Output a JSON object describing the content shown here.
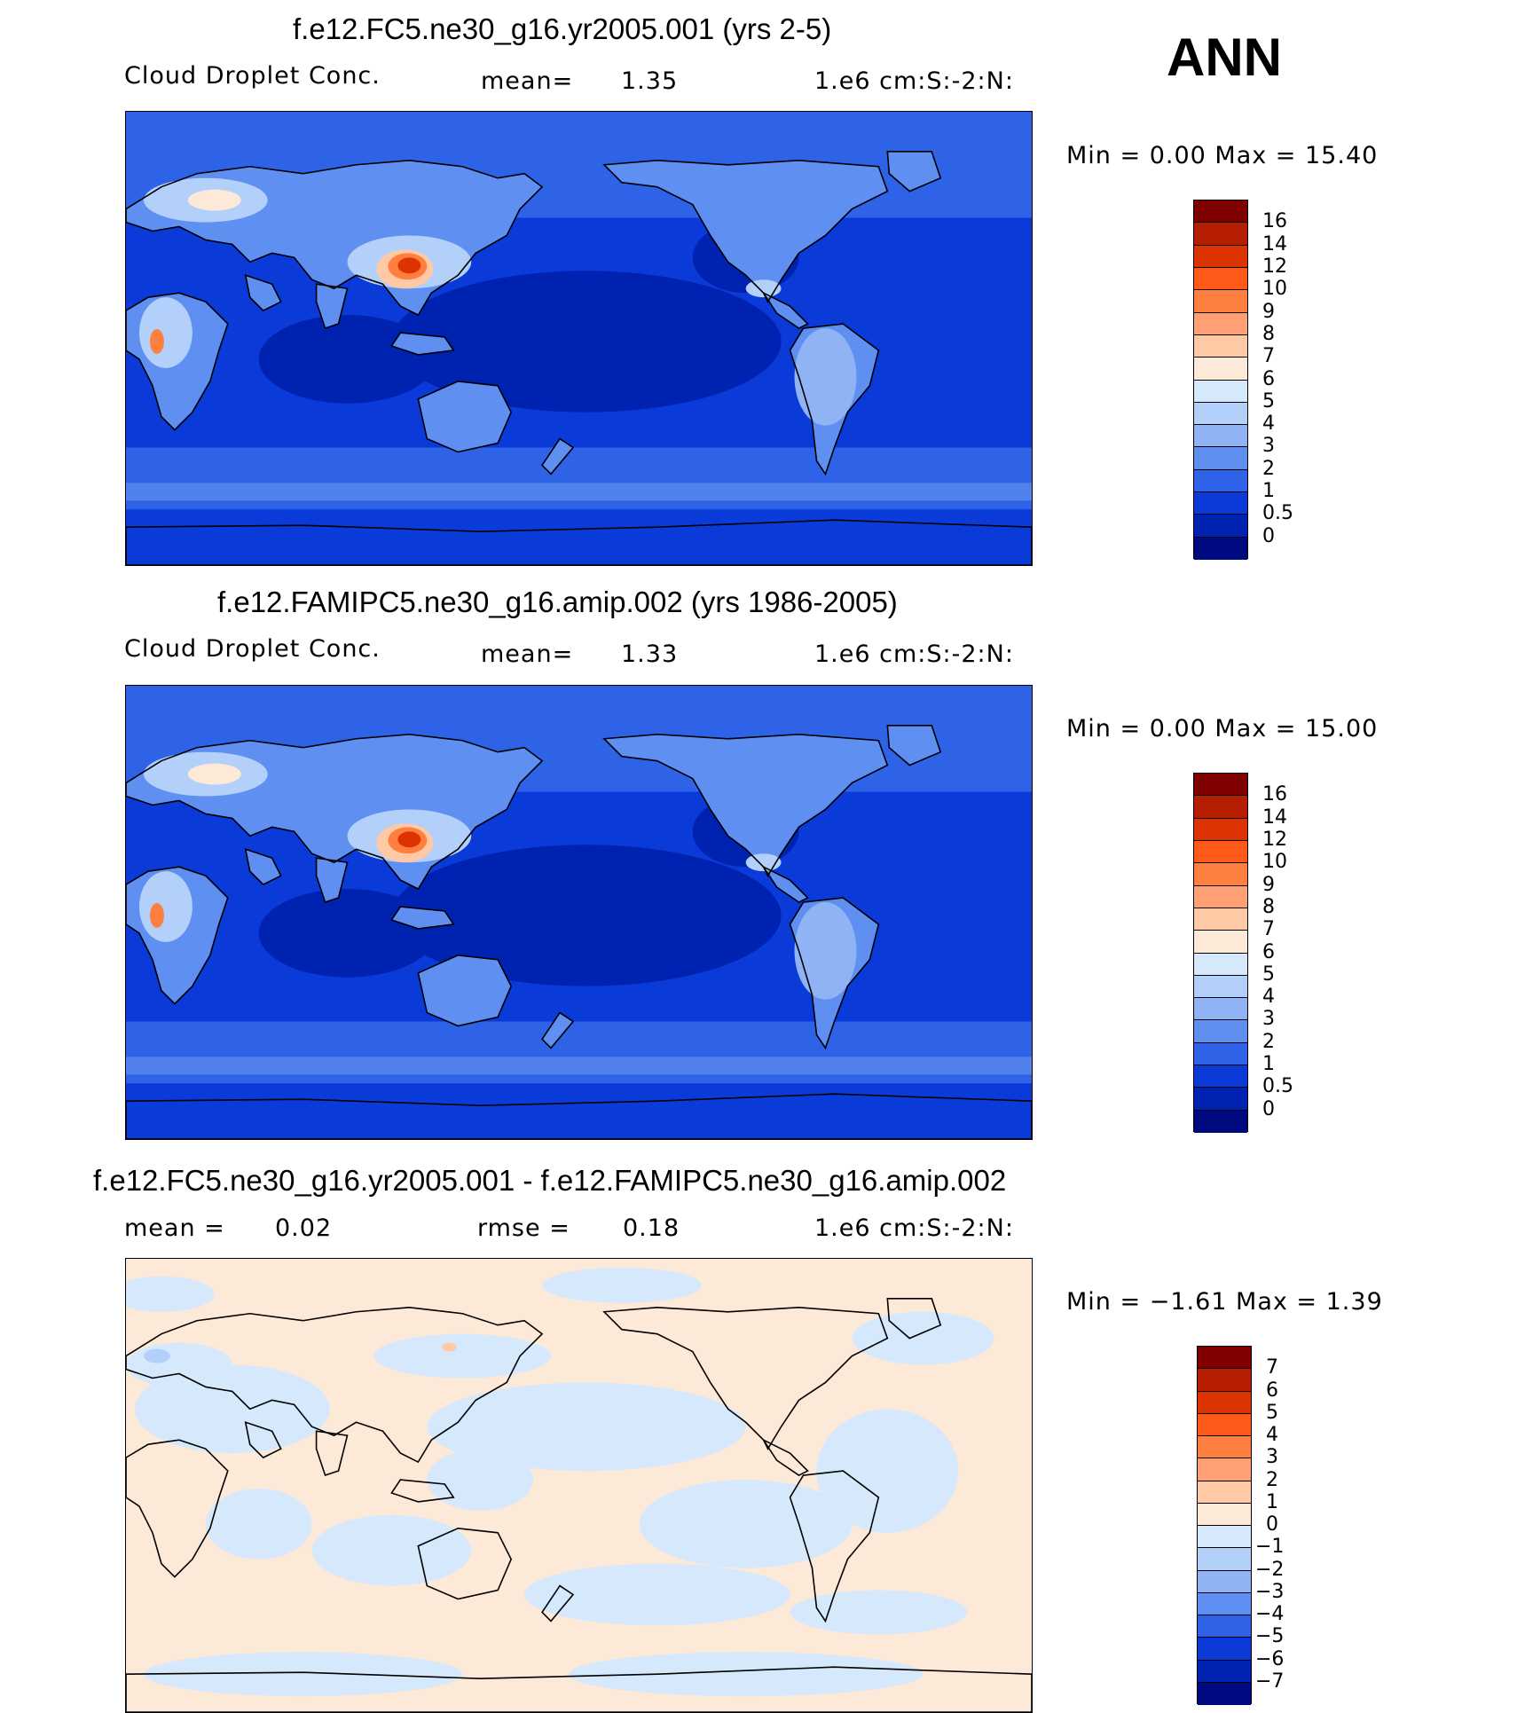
{
  "season": "ANN",
  "panels": [
    {
      "title": "f.e12.FC5.ne30_g16.yr2005.001 (yrs 2-5)",
      "variable": "Cloud Droplet Conc.",
      "mean_label": "mean=",
      "mean_value": "1.35",
      "units": "1.e6 cm:S:-2:N:",
      "minmax": "Min =   0.00 Max =   15.40",
      "colorbar_labels": [
        "16",
        "14",
        "12",
        "10",
        "9",
        "8",
        "7",
        "6",
        "5",
        "4",
        "3",
        "2",
        "1",
        "0.5",
        "0"
      ],
      "field": "abs"
    },
    {
      "title": "f.e12.FAMIPC5.ne30_g16.amip.002 (yrs 1986-2005)",
      "variable": "Cloud Droplet Conc.",
      "mean_label": "mean=",
      "mean_value": "1.33",
      "units": "1.e6 cm:S:-2:N:",
      "minmax": "Min =   0.00 Max =   15.00",
      "colorbar_labels": [
        "16",
        "14",
        "12",
        "10",
        "9",
        "8",
        "7",
        "6",
        "5",
        "4",
        "3",
        "2",
        "1",
        "0.5",
        "0"
      ],
      "field": "abs"
    },
    {
      "title": "f.e12.FC5.ne30_g16.yr2005.001 - f.e12.FAMIPC5.ne30_g16.amip.002",
      "mean_label": "mean =",
      "mean_value": "0.02",
      "rmse_label": "rmse =",
      "rmse_value": "0.18",
      "units": "1.e6 cm:S:-2:N:",
      "minmax": "Min =  −1.61 Max =    1.39",
      "colorbar_labels": [
        "7",
        "6",
        "5",
        "4",
        "3",
        "2",
        "1",
        "0",
        "−1",
        "−2",
        "−3",
        "−4",
        "−5",
        "−6",
        "−7"
      ],
      "field": "diff"
    }
  ],
  "colors": {
    "abs_colorbar": [
      "#7f0000",
      "#b51e00",
      "#dd3300",
      "#ff5a1a",
      "#ff7f40",
      "#ffa074",
      "#ffc9a6",
      "#fde9d8",
      "#d6e8fb",
      "#b3d0fa",
      "#8fb3f5",
      "#5f8ff0",
      "#2e63e8",
      "#0a3ad8",
      "#0022b0",
      "#000a80"
    ],
    "diff_colorbar": [
      "#7f0000",
      "#b51e00",
      "#dd3300",
      "#ff5a1a",
      "#ff7f40",
      "#ffa074",
      "#ffc9a6",
      "#fde9d8",
      "#d6e8fb",
      "#b3d0fa",
      "#8fb3f5",
      "#5f8ff0",
      "#2e63e8",
      "#0a3ad8",
      "#0022b0",
      "#000a80"
    ],
    "ocean_low": "#0a3ad8",
    "ocean_mid": "#2e63e8",
    "diff_pos": "#fde9d8",
    "diff_neg": "#d6e8fb"
  }
}
